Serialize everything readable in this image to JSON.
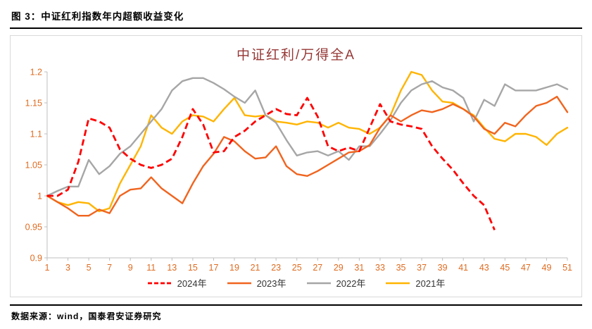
{
  "figure": {
    "header": "图 3：中证红利指数年内超额收益变化",
    "source": "数据来源：wind，国泰君安证券研究"
  },
  "chart_data": {
    "type": "line",
    "title": "中证红利/万得全A",
    "xlim": [
      1,
      51
    ],
    "ylim": [
      0.9,
      1.2
    ],
    "grid": false,
    "legend_position": "bottom",
    "y_ticks": [
      0.9,
      0.95,
      1,
      1.05,
      1.1,
      1.15,
      1.2
    ],
    "x_tick_labels": [
      1,
      3,
      5,
      7,
      9,
      11,
      13,
      15,
      17,
      19,
      21,
      23,
      25,
      27,
      29,
      31,
      33,
      35,
      37,
      39,
      41,
      43,
      45,
      47,
      49,
      51
    ],
    "colors": {
      "axis_label": "#df6b20",
      "axis_line": "#bfbfbf",
      "title": "#953735"
    },
    "series": [
      {
        "name": "2024年",
        "color": "#ff0000",
        "style": "dashed",
        "stroke_width": 2.8,
        "values": [
          1.0,
          1.0,
          1.01,
          1.055,
          1.125,
          1.12,
          1.11,
          1.075,
          1.06,
          1.05,
          1.045,
          1.05,
          1.06,
          1.095,
          1.14,
          1.115,
          1.07,
          1.072,
          1.095,
          1.105,
          1.12,
          1.13,
          1.14,
          1.132,
          1.13,
          1.158,
          1.128,
          1.08,
          1.072,
          1.078,
          1.072,
          1.11,
          1.148,
          1.12,
          1.115,
          1.112,
          1.108,
          1.08,
          1.06,
          1.042,
          1.02,
          1.0,
          0.985,
          0.945,
          null,
          null,
          null,
          null,
          null,
          null,
          null
        ]
      },
      {
        "name": "2023年",
        "color": "#f0641e",
        "style": "solid",
        "stroke_width": 2.4,
        "values": [
          1.0,
          0.99,
          0.98,
          0.968,
          0.968,
          0.978,
          0.972,
          1.0,
          1.01,
          1.012,
          1.03,
          1.012,
          1.0,
          0.988,
          1.02,
          1.048,
          1.068,
          1.095,
          1.088,
          1.072,
          1.06,
          1.062,
          1.08,
          1.048,
          1.035,
          1.032,
          1.04,
          1.05,
          1.06,
          1.07,
          1.072,
          1.082,
          1.11,
          1.13,
          1.12,
          1.13,
          1.138,
          1.135,
          1.14,
          1.148,
          1.14,
          1.128,
          1.108,
          1.1,
          1.118,
          1.112,
          1.13,
          1.145,
          1.15,
          1.16,
          1.135
        ]
      },
      {
        "name": "2022年",
        "color": "#a6a6a6",
        "style": "solid",
        "stroke_width": 2.4,
        "values": [
          1.0,
          1.008,
          1.015,
          1.015,
          1.058,
          1.035,
          1.048,
          1.068,
          1.08,
          1.1,
          1.12,
          1.14,
          1.17,
          1.185,
          1.19,
          1.19,
          1.182,
          1.172,
          1.16,
          1.15,
          1.17,
          1.13,
          1.118,
          1.09,
          1.065,
          1.07,
          1.072,
          1.065,
          1.072,
          1.058,
          1.08,
          1.08,
          1.1,
          1.122,
          1.15,
          1.17,
          1.18,
          1.185,
          1.175,
          1.17,
          1.158,
          1.12,
          1.155,
          1.145,
          1.18,
          1.17,
          1.17,
          1.17,
          1.175,
          1.18,
          1.172
        ]
      },
      {
        "name": "2021年",
        "color": "#ffb400",
        "style": "solid",
        "stroke_width": 2.4,
        "values": [
          1.0,
          0.99,
          0.985,
          0.99,
          0.988,
          0.975,
          0.98,
          1.02,
          1.05,
          1.08,
          1.13,
          1.11,
          1.1,
          1.12,
          1.13,
          1.128,
          1.12,
          1.14,
          1.158,
          1.13,
          1.128,
          1.13,
          1.12,
          1.118,
          1.115,
          1.12,
          1.118,
          1.11,
          1.118,
          1.11,
          1.108,
          1.1,
          1.11,
          1.13,
          1.17,
          1.2,
          1.195,
          1.17,
          1.152,
          1.15,
          1.14,
          1.13,
          1.11,
          1.092,
          1.088,
          1.1,
          1.1,
          1.095,
          1.082,
          1.1,
          1.11
        ]
      }
    ]
  }
}
